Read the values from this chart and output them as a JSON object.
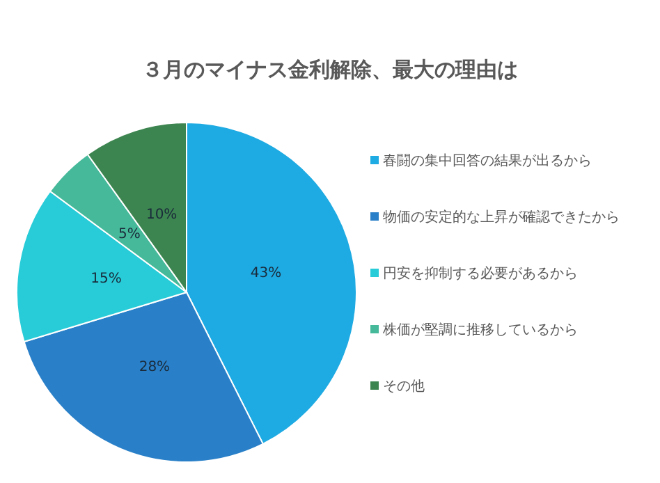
{
  "chart_data": {
    "type": "pie",
    "title": "３月のマイナス金利解除、最大の理由は",
    "categories": [
      "春闘の集中回答の結果が出るから",
      "物価の安定的な上昇が確認できたから",
      "円安を抑制する必要があるから",
      "株価が堅調に推移しているから",
      "その他"
    ],
    "values": [
      43,
      28,
      15,
      5,
      10
    ],
    "value_labels": [
      "43%",
      "28%",
      "15%",
      "5%",
      "10%"
    ],
    "colors": [
      "#1eaae2",
      "#2a80c8",
      "#27ccd8",
      "#46b99a",
      "#3d8550"
    ],
    "legend": "right"
  }
}
